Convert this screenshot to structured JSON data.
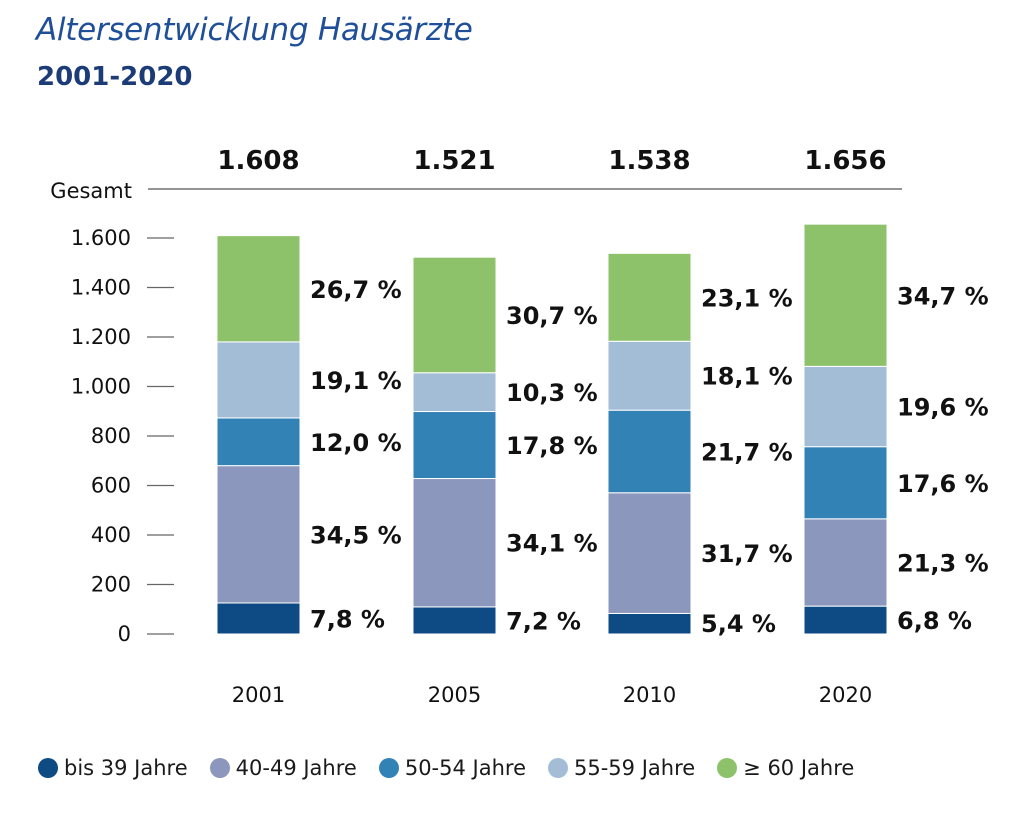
{
  "chart_data": {
    "type": "bar",
    "stacked": true,
    "title": "Altersentwicklung Hausärzte",
    "subtitle": "2001-2020",
    "total_label": "Gesamt",
    "categories": [
      "2001",
      "2005",
      "2010",
      "2020"
    ],
    "totals": [
      1608,
      1521,
      1538,
      1656
    ],
    "total_labels": [
      "1.608",
      "1.521",
      "1.538",
      "1.656"
    ],
    "ylim": [
      0,
      1800
    ],
    "yticks": [
      0,
      200,
      400,
      600,
      800,
      1000,
      1200,
      1400,
      1600
    ],
    "ytick_labels": [
      "0",
      "200",
      "400",
      "600",
      "800",
      "1.000",
      "1.200",
      "1.400",
      "1.600"
    ],
    "grid": false,
    "legend_position": "bottom",
    "series": [
      {
        "name": "bis 39 Jahre",
        "color": "#0e4a84",
        "percents": [
          7.8,
          7.2,
          5.4,
          6.8
        ],
        "labels": [
          "7,8 %",
          "7,2 %",
          "5,4 %",
          "6,8 %"
        ]
      },
      {
        "name": "40-49 Jahre",
        "color": "#8c97bd",
        "percents": [
          34.5,
          34.1,
          31.7,
          21.3
        ],
        "labels": [
          "34,5 %",
          "34,1 %",
          "31,7 %",
          "21,3 %"
        ]
      },
      {
        "name": "50-54 Jahre",
        "color": "#3282b6",
        "percents": [
          12.0,
          17.8,
          21.7,
          17.6
        ],
        "labels": [
          "12,0 %",
          "17,8 %",
          "21,7 %",
          "17,6 %"
        ]
      },
      {
        "name": "55-59 Jahre",
        "color": "#a3bdd6",
        "percents": [
          19.1,
          10.3,
          18.1,
          19.6
        ],
        "labels": [
          "19,1 %",
          "10,3 %",
          "18,1 %",
          "19,6 %"
        ]
      },
      {
        "name": "≥ 60 Jahre",
        "color": "#8dc26b",
        "percents": [
          26.7,
          30.7,
          23.1,
          34.7
        ],
        "labels": [
          "26,7 %",
          "30,7 %",
          "23,1 %",
          "34,7 %"
        ]
      }
    ]
  }
}
